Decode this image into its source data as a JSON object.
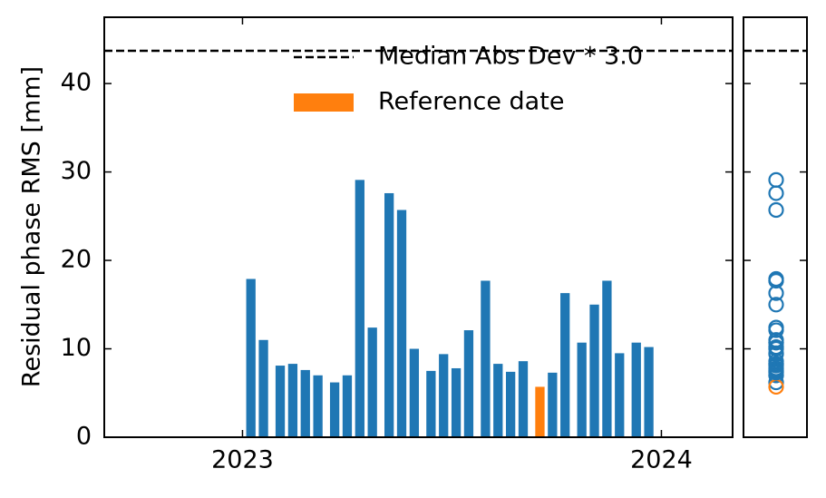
{
  "chart_data": {
    "type": "bar",
    "y_label": "Residual phase RMS [mm]",
    "x": [
      2023.02,
      2023.05,
      2023.09,
      2023.12,
      2023.15,
      2023.18,
      2023.22,
      2023.25,
      2023.28,
      2023.31,
      2023.35,
      2023.38,
      2023.41,
      2023.45,
      2023.48,
      2023.51,
      2023.54,
      2023.58,
      2023.61,
      2023.64,
      2023.67,
      2023.71,
      2023.74,
      2023.77,
      2023.81,
      2023.84,
      2023.87,
      2023.9,
      2023.94,
      2023.97
    ],
    "values": [
      17.9,
      11.0,
      8.1,
      8.3,
      7.6,
      7.0,
      6.2,
      7.0,
      29.1,
      12.4,
      27.6,
      25.7,
      10.0,
      7.5,
      9.4,
      7.8,
      12.1,
      17.7,
      8.3,
      7.4,
      8.6,
      5.7,
      7.3,
      16.3,
      10.7,
      15.0,
      17.7,
      9.5,
      10.7,
      10.2
    ],
    "colors": [
      "#1f77b4",
      "#1f77b4",
      "#1f77b4",
      "#1f77b4",
      "#1f77b4",
      "#1f77b4",
      "#1f77b4",
      "#1f77b4",
      "#1f77b4",
      "#1f77b4",
      "#1f77b4",
      "#1f77b4",
      "#1f77b4",
      "#1f77b4",
      "#1f77b4",
      "#1f77b4",
      "#1f77b4",
      "#1f77b4",
      "#1f77b4",
      "#1f77b4",
      "#1f77b4",
      "#ff7f0e",
      "#1f77b4",
      "#1f77b4",
      "#1f77b4",
      "#1f77b4",
      "#1f77b4",
      "#1f77b4",
      "#1f77b4",
      "#1f77b4"
    ],
    "threshold": 43.7,
    "legend": [
      {
        "label": "Median Abs Dev * 3.0",
        "color": "#000000",
        "style": "dashed"
      },
      {
        "label": "Reference date",
        "color": "#ff7f0e",
        "style": "patch"
      }
    ],
    "xlim": [
      2022.67,
      2024.17
    ],
    "xticks": [
      2023,
      2024
    ],
    "ylim": [
      0,
      47.5
    ],
    "yticks": [
      0,
      10,
      20,
      30,
      40
    ]
  }
}
